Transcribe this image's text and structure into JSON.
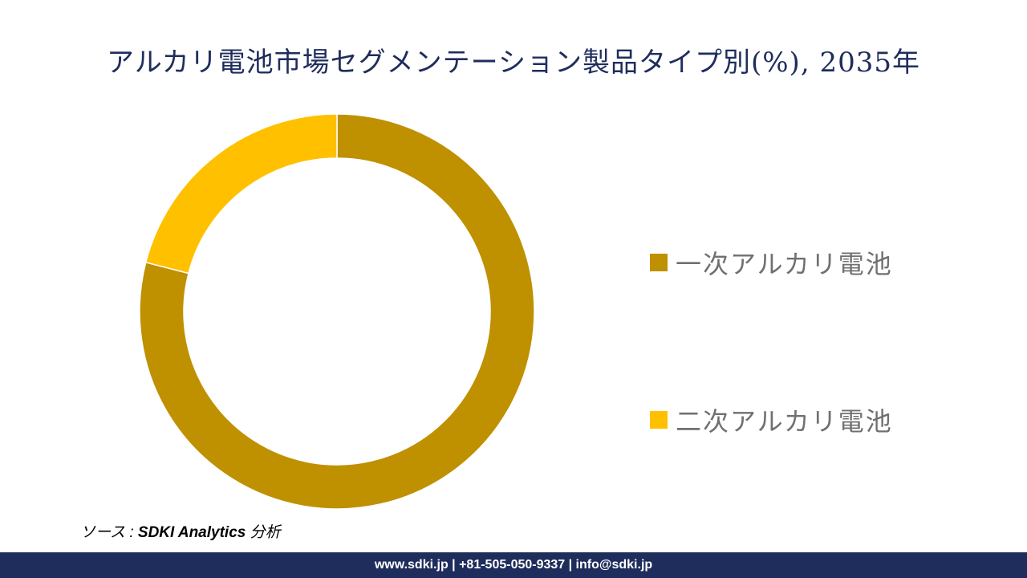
{
  "header": {
    "title": "アルカリ電池市場セグメンテーション製品タイプ別(%), 2035年"
  },
  "chart_data": {
    "type": "pie",
    "subtype": "donut",
    "title": "アルカリ電池市場セグメンテーション製品タイプ別(%), 2035年",
    "slices": [
      {
        "label": "一次アルカリ電池",
        "value": 79,
        "color": "#bf9000"
      },
      {
        "label": "二次アルカリ電池",
        "value": 21,
        "color": "#ffc000"
      }
    ],
    "legend_position": "right"
  },
  "source": {
    "prefix": "ソース : ",
    "brand": "SDKI Analytics",
    "suffix": " 分析"
  },
  "footer": {
    "text": "www.sdki.jp | +81-505-050-9337 | info@sdki.jp"
  }
}
